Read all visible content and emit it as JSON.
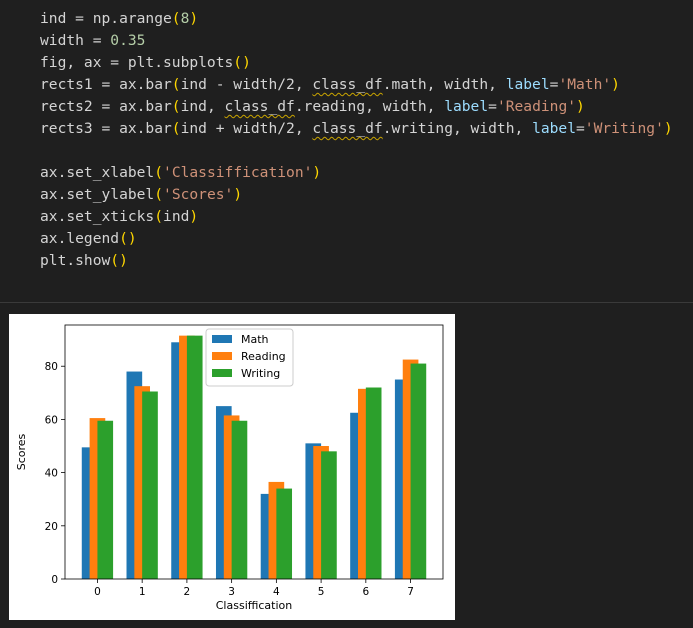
{
  "code_cell": {
    "lines": [
      [
        {
          "t": "ind = np.arange"
        },
        {
          "t": "(",
          "c": "paren"
        },
        {
          "t": "8",
          "c": "num"
        },
        {
          "t": ")",
          "c": "paren"
        }
      ],
      [
        {
          "t": "width = "
        },
        {
          "t": "0.35",
          "c": "num"
        }
      ],
      [
        {
          "t": "fig, ax = plt.subplots"
        },
        {
          "t": "()",
          "c": "paren"
        }
      ],
      [
        {
          "t": "rects1 = ax.bar"
        },
        {
          "t": "(",
          "c": "paren"
        },
        {
          "t": "ind - width/2, "
        },
        {
          "t": "class_df",
          "c": "squig"
        },
        {
          "t": ".math, width, "
        },
        {
          "t": "label",
          "c": "kw"
        },
        {
          "t": "="
        },
        {
          "t": "'Math'",
          "c": "str"
        },
        {
          "t": ")",
          "c": "paren"
        }
      ],
      [
        {
          "t": "rects2 = ax.bar"
        },
        {
          "t": "(",
          "c": "paren"
        },
        {
          "t": "ind, "
        },
        {
          "t": "class_df",
          "c": "squig"
        },
        {
          "t": ".reading, width, "
        },
        {
          "t": "label",
          "c": "kw"
        },
        {
          "t": "="
        },
        {
          "t": "'Reading'",
          "c": "str"
        },
        {
          "t": ")",
          "c": "paren"
        }
      ],
      [
        {
          "t": "rects3 = ax.bar"
        },
        {
          "t": "(",
          "c": "paren"
        },
        {
          "t": "ind + width/2, "
        },
        {
          "t": "class_df",
          "c": "squig"
        },
        {
          "t": ".writing, width, "
        },
        {
          "t": "label",
          "c": "kw"
        },
        {
          "t": "="
        },
        {
          "t": "'Writing'",
          "c": "str"
        },
        {
          "t": ")",
          "c": "paren"
        }
      ],
      [
        {
          "t": ""
        }
      ],
      [
        {
          "t": "ax.set_xlabel"
        },
        {
          "t": "(",
          "c": "paren"
        },
        {
          "t": "'Classiffication'",
          "c": "str"
        },
        {
          "t": ")",
          "c": "paren"
        }
      ],
      [
        {
          "t": "ax.set_ylabel"
        },
        {
          "t": "(",
          "c": "paren"
        },
        {
          "t": "'Scores'",
          "c": "str"
        },
        {
          "t": ")",
          "c": "paren"
        }
      ],
      [
        {
          "t": "ax.set_xticks"
        },
        {
          "t": "(",
          "c": "paren"
        },
        {
          "t": "ind"
        },
        {
          "t": ")",
          "c": "paren"
        }
      ],
      [
        {
          "t": "ax.legend"
        },
        {
          "t": "()",
          "c": "paren"
        }
      ],
      [
        {
          "t": "plt.show"
        },
        {
          "t": "()",
          "c": "paren"
        }
      ]
    ]
  },
  "colors": {
    "math": "#1f77b4",
    "reading": "#ff7f0e",
    "writing": "#2ca02c"
  },
  "chart_data": {
    "type": "bar",
    "title": "",
    "xlabel": "Classiffication",
    "ylabel": "Scores",
    "categories": [
      "0",
      "1",
      "2",
      "3",
      "4",
      "5",
      "6",
      "7"
    ],
    "series": [
      {
        "name": "Math",
        "values": [
          49.5,
          78,
          89,
          65,
          32,
          51,
          62.5,
          75
        ]
      },
      {
        "name": "Reading",
        "values": [
          60.5,
          72.5,
          91.5,
          61.5,
          36.5,
          50,
          71.5,
          82.5
        ]
      },
      {
        "name": "Writing",
        "values": [
          59.5,
          70.5,
          91.5,
          59.5,
          34,
          48,
          72,
          81
        ]
      }
    ],
    "ylim": [
      0,
      95.5
    ],
    "yticks": [
      0,
      20,
      40,
      60,
      80
    ],
    "legend": "upper-center",
    "grid": false
  }
}
